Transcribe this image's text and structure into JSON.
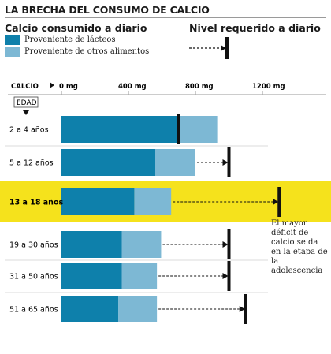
{
  "title": "LA BRECHA DEL CONSUMO DE CALCIO",
  "legend": {
    "consumed_title": "Calcio consumido a diario",
    "required_title": "Nivel requerido a diario",
    "dairy_label": "Proveniente de lácteos",
    "other_label": "Proveniente de otros alimentos"
  },
  "colors": {
    "dairy": "#0e80ab",
    "other": "#7db8d4",
    "highlight": "#f5e21c",
    "marker": "#111111"
  },
  "annotation": "El mayor déficit de calcio se da en la etapa de la adolescencia",
  "chart_data": {
    "type": "bar",
    "orientation": "horizontal",
    "stacked": true,
    "axis_label": "CALCIO",
    "category_axis_label": "EDAD",
    "x_ticks": [
      "0 mg",
      "400 mg",
      "800 mg",
      "1200 mg"
    ],
    "x_tick_values": [
      0,
      400,
      800,
      1200
    ],
    "xlim": [
      0,
      1300
    ],
    "categories": [
      "2 a 4 años",
      "5 a 12 años",
      "13 a 18 años",
      "19 a 30 años",
      "31 a 50 años",
      "51 a 65 años"
    ],
    "highlighted_category": "13 a 18 años",
    "series": [
      {
        "name": "Proveniente de lácteos",
        "values": [
          700,
          560,
          435,
          360,
          360,
          340
        ]
      },
      {
        "name": "Proveniente de otros alimentos",
        "values": [
          230,
          240,
          220,
          235,
          210,
          230
        ]
      }
    ],
    "required": [
      700,
      1000,
      1300,
      1000,
      1000,
      1100
    ]
  }
}
